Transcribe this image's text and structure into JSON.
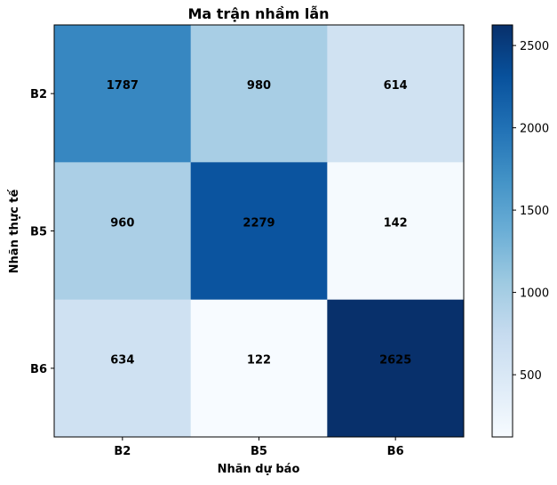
{
  "chart_data": {
    "type": "heatmap",
    "title": "Ma trận nhầm lẫn",
    "xlabel": "Nhãn dự báo",
    "ylabel": "Nhãn thực tế",
    "x_categories": [
      "B2",
      "B5",
      "B6"
    ],
    "y_categories": [
      "B2",
      "B5",
      "B6"
    ],
    "values": [
      [
        1787,
        980,
        614
      ],
      [
        960,
        2279,
        142
      ],
      [
        634,
        122,
        2625
      ]
    ],
    "colormap": "Blues",
    "colorbar": {
      "range": [
        122,
        2625
      ],
      "ticks": [
        500,
        1000,
        1500,
        2000,
        2500
      ],
      "tick_labels": [
        "500",
        "1000",
        "1500",
        "2000",
        "2500"
      ]
    },
    "grid": false
  }
}
